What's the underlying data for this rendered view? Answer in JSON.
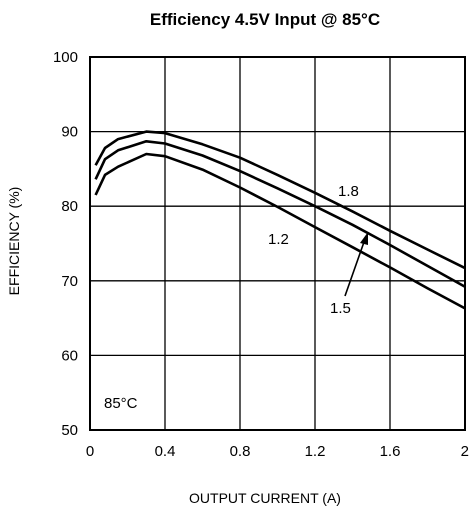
{
  "chart_data": {
    "type": "line",
    "title": "Efficiency 4.5V Input @ 85°C",
    "xlabel": "OUTPUT CURRENT (A)",
    "ylabel": "EFFICIENCY (%)",
    "xlim": [
      0,
      2
    ],
    "ylim": [
      50,
      100
    ],
    "xticks": [
      "0",
      "0.4",
      "0.8",
      "1.2",
      "1.6",
      "2"
    ],
    "yticks": [
      "50",
      "60",
      "70",
      "80",
      "90",
      "100"
    ],
    "grid": true,
    "annotation": "85°C",
    "series": [
      {
        "name": "1.8",
        "x": [
          0.03,
          0.08,
          0.15,
          0.3,
          0.4,
          0.6,
          0.8,
          1.0,
          1.2,
          1.4,
          1.6,
          1.8,
          2.0
        ],
        "values": [
          85.5,
          87.8,
          89.0,
          90.0,
          89.8,
          88.3,
          86.5,
          84.2,
          81.8,
          79.3,
          76.7,
          74.2,
          71.7
        ]
      },
      {
        "name": "1.5",
        "x": [
          0.03,
          0.08,
          0.15,
          0.3,
          0.4,
          0.6,
          0.8,
          1.0,
          1.2,
          1.4,
          1.6,
          1.8,
          2.0
        ],
        "values": [
          83.6,
          86.3,
          87.5,
          88.7,
          88.4,
          86.8,
          84.7,
          82.4,
          80.0,
          77.5,
          74.8,
          72.0,
          69.2
        ]
      },
      {
        "name": "1.2",
        "x": [
          0.03,
          0.08,
          0.15,
          0.3,
          0.4,
          0.6,
          0.8,
          1.0,
          1.2,
          1.4,
          1.6,
          1.8,
          2.0
        ],
        "values": [
          81.5,
          84.2,
          85.3,
          87.0,
          86.7,
          84.9,
          82.5,
          79.9,
          77.2,
          74.5,
          71.8,
          69.0,
          66.3
        ]
      }
    ],
    "labels": [
      "1.8",
      "1.5",
      "1.2"
    ]
  }
}
